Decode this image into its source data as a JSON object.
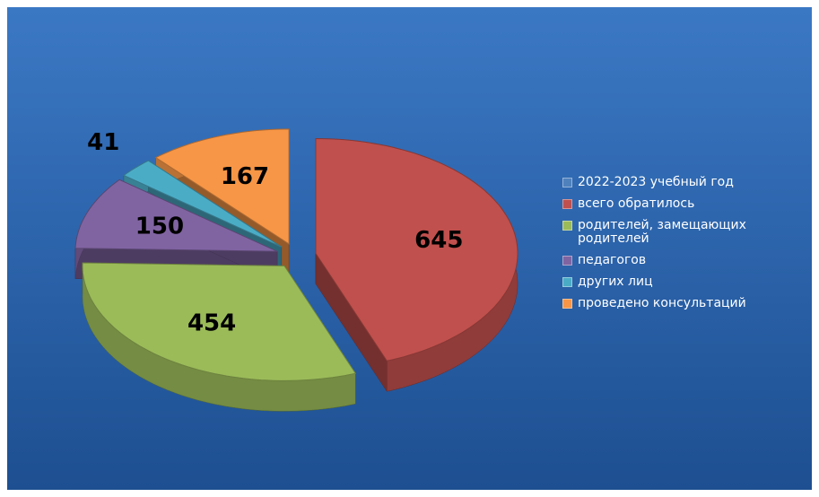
{
  "chart_data": {
    "type": "pie3d",
    "categories": [
      "2022-2023 учебный год",
      "всего обратилось",
      "родителей, замещающих родителей",
      "педагогов",
      "других лиц",
      "проведено консультаций"
    ],
    "values": [
      null,
      645,
      454,
      150,
      41,
      167
    ],
    "colors": [
      "#4f81bd",
      "#c0504d",
      "#9bbb59",
      "#8064a2",
      "#4bacc6",
      "#f79646"
    ],
    "legend": "right"
  }
}
